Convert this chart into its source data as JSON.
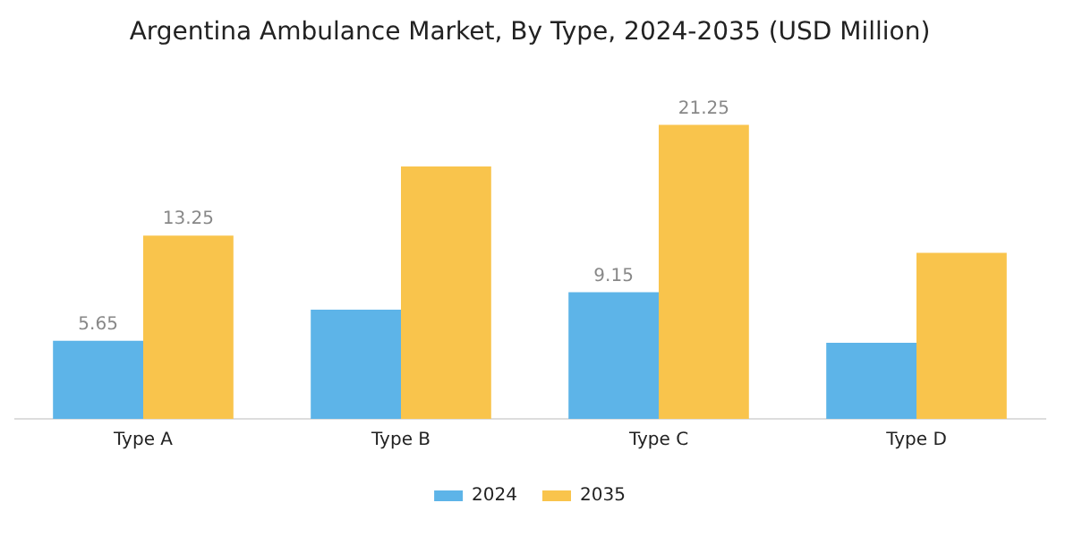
{
  "chart_data": {
    "type": "bar",
    "title": "Argentina Ambulance Market, By Type, 2024-2035 (USD Million)",
    "categories": [
      "Type A",
      "Type B",
      "Type C",
      "Type D"
    ],
    "series": [
      {
        "name": "2024",
        "color": "#5db4e8",
        "values": [
          5.65,
          7.9,
          9.15,
          5.5
        ],
        "value_labels": [
          "5.65",
          null,
          "9.15",
          null
        ]
      },
      {
        "name": "2035",
        "color": "#f9c44c",
        "values": [
          13.25,
          18.25,
          21.25,
          12.0
        ],
        "value_labels": [
          "13.25",
          null,
          "21.25",
          null
        ]
      }
    ],
    "grid": false,
    "legend": "bottom"
  }
}
